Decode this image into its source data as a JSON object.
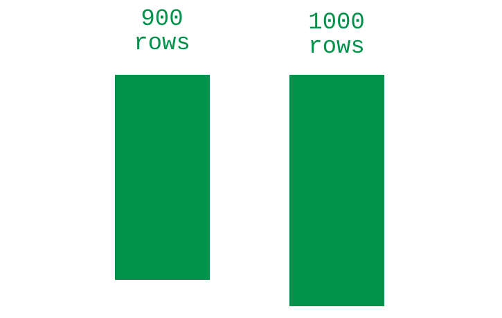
{
  "colors": {
    "accent": "#00924a",
    "background": "#ffffff"
  },
  "blocks": [
    {
      "count": "900",
      "unit": "rows"
    },
    {
      "count": "1000",
      "unit": "rows"
    }
  ]
}
